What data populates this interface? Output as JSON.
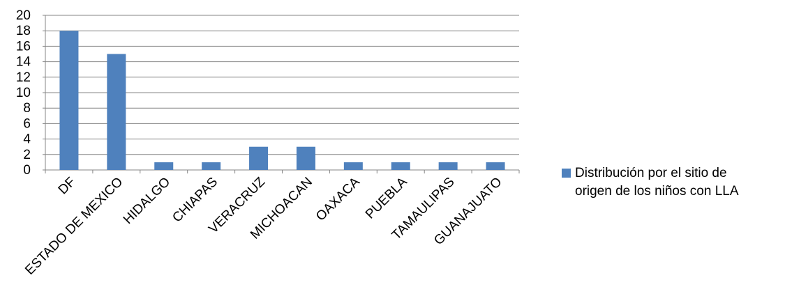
{
  "chart_data": {
    "type": "bar",
    "title": "",
    "xlabel": "",
    "ylabel": "",
    "categories": [
      "DF",
      "ESTADO DE MEXICO",
      "HIDALGO",
      "CHIAPAS",
      "VERACRUZ",
      "MICHOACAN",
      "OAXACA",
      "PUEBLA",
      "TAMAULIPAS",
      "GUANAJUATO"
    ],
    "series": [
      {
        "name": "Distribución por el sitio de origen de los niños con LLA",
        "values": [
          18,
          15,
          1,
          1,
          3,
          3,
          1,
          1,
          1,
          1
        ],
        "color": "#4f81bd"
      }
    ],
    "ylim": [
      0,
      20
    ],
    "yticks": [
      0,
      2,
      4,
      6,
      8,
      10,
      12,
      14,
      16,
      18,
      20
    ],
    "grid": true,
    "legend_position": "right",
    "legend": {
      "line1": "Distribución por el sitio de",
      "line2": "origen de los niños con LLA"
    }
  }
}
